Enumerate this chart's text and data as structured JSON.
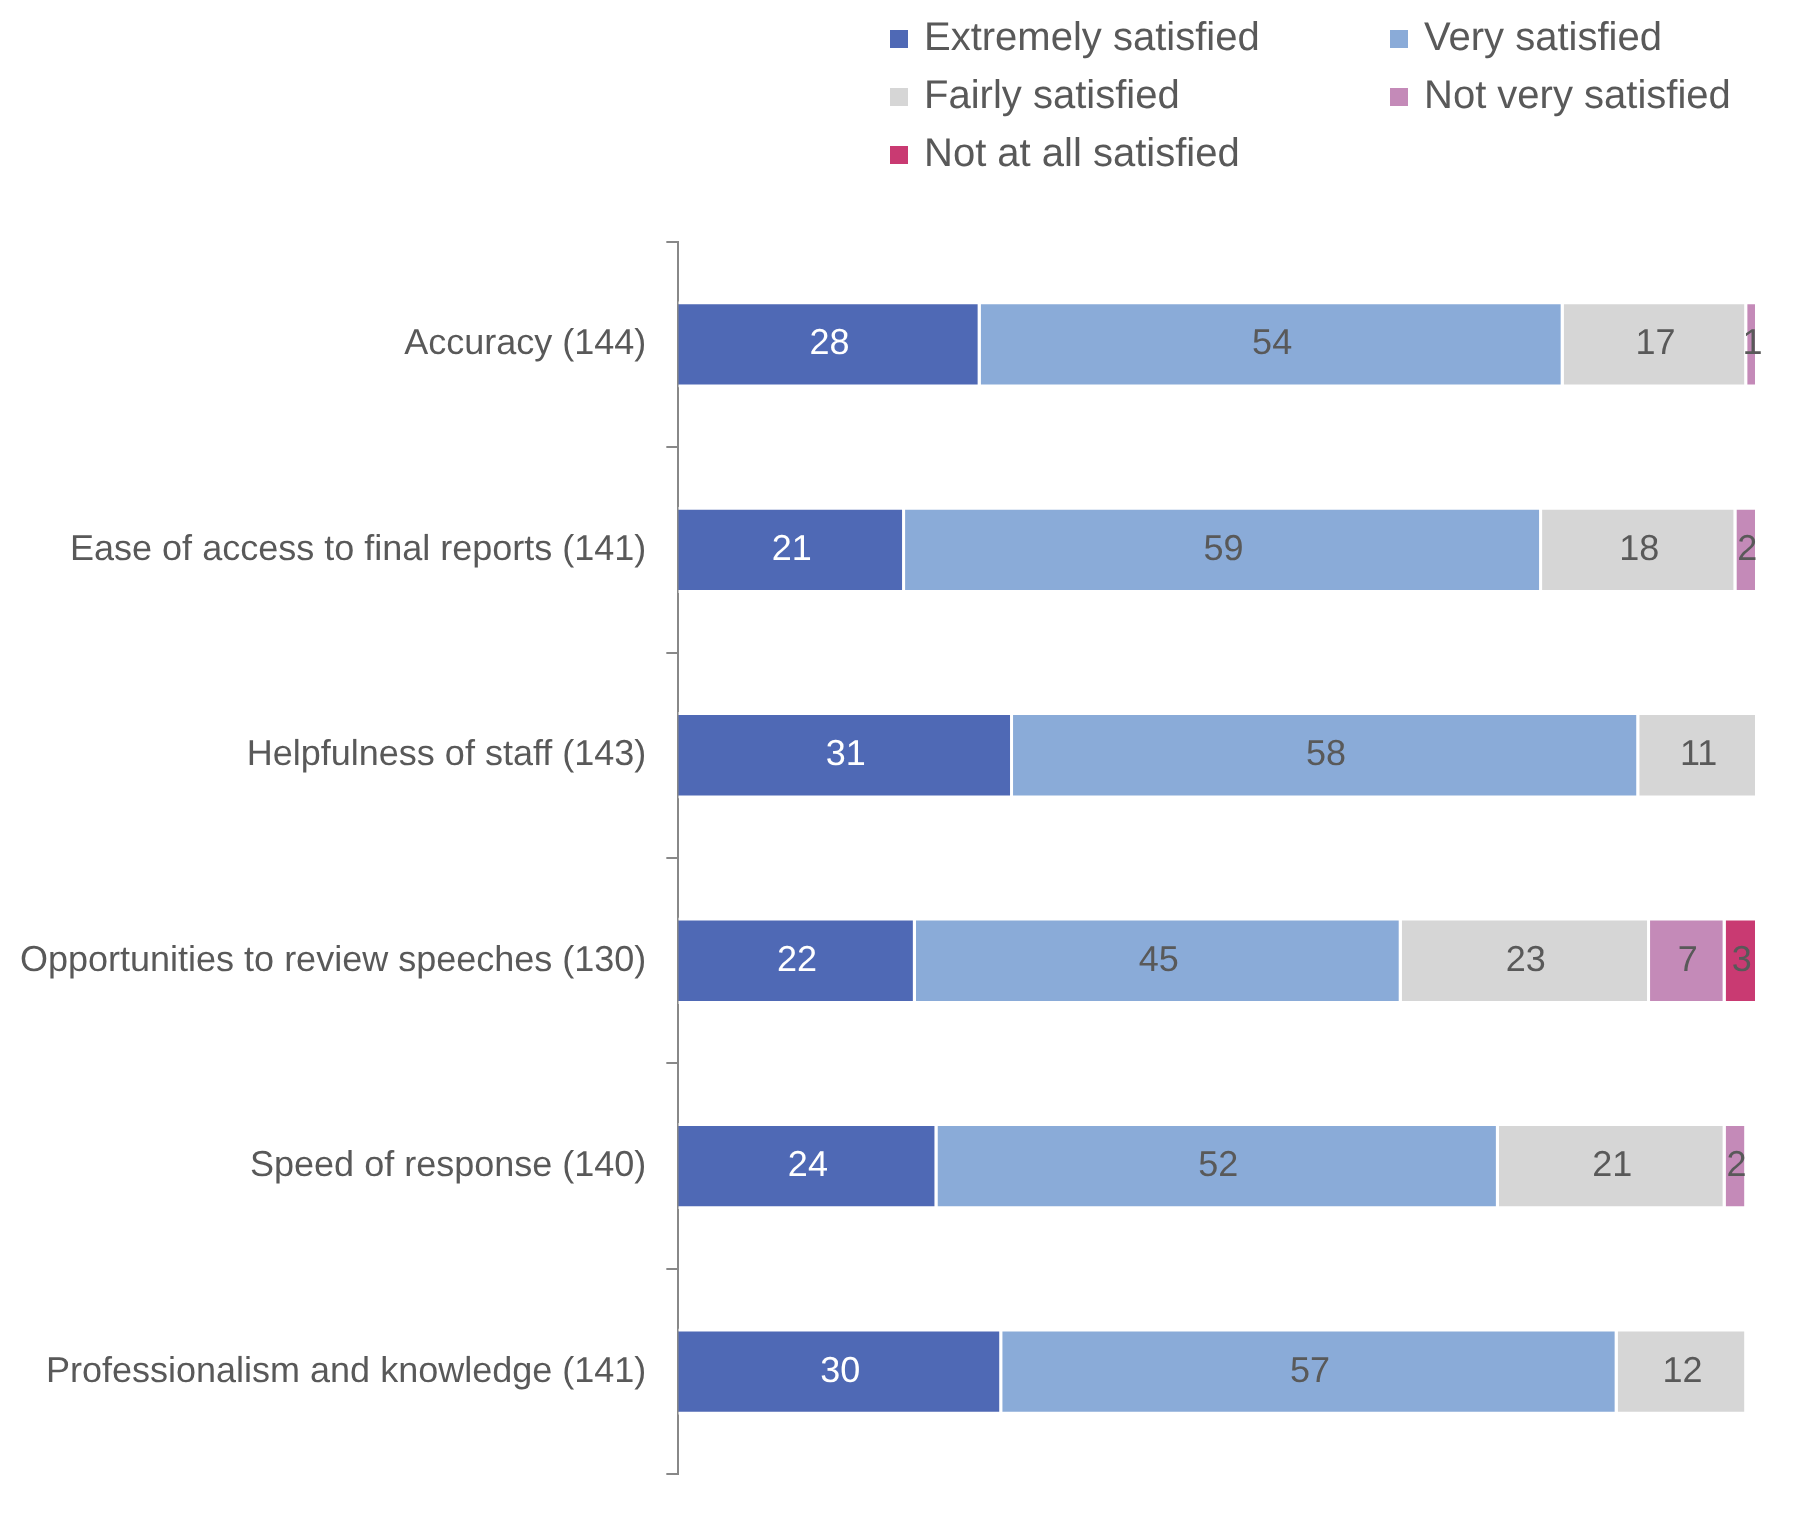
{
  "chart_data": {
    "type": "bar",
    "orientation": "horizontal",
    "stacked": true,
    "data_labels": true,
    "legend": "top",
    "grid": false,
    "tick_labels": "y",
    "categories": [
      "Accuracy (144)",
      "Ease of access to final reports (141)",
      "Helpfulness of staff (143)",
      "Opportunities to review speeches (130)",
      "Speed of response (140)",
      "Professionalism and knowledge (141)"
    ],
    "series": [
      {
        "name": "Extremely satisfied",
        "color": "#4f69b5",
        "values": [
          28,
          21,
          31,
          22,
          24,
          30
        ]
      },
      {
        "name": "Very satisfied",
        "color": "#8aabd8",
        "values": [
          54,
          59,
          58,
          45,
          52,
          57
        ]
      },
      {
        "name": "Fairly satisfied",
        "color": "#d6d6d6",
        "values": [
          17,
          18,
          11,
          23,
          21,
          12
        ]
      },
      {
        "name": "Not very satisfied",
        "color": "#c48ab8",
        "values": [
          1,
          2,
          null,
          7,
          2,
          null
        ]
      },
      {
        "name": "Not at all satisfied",
        "color": "#c93a72",
        "values": [
          null,
          null,
          null,
          3,
          null,
          null
        ]
      }
    ]
  }
}
